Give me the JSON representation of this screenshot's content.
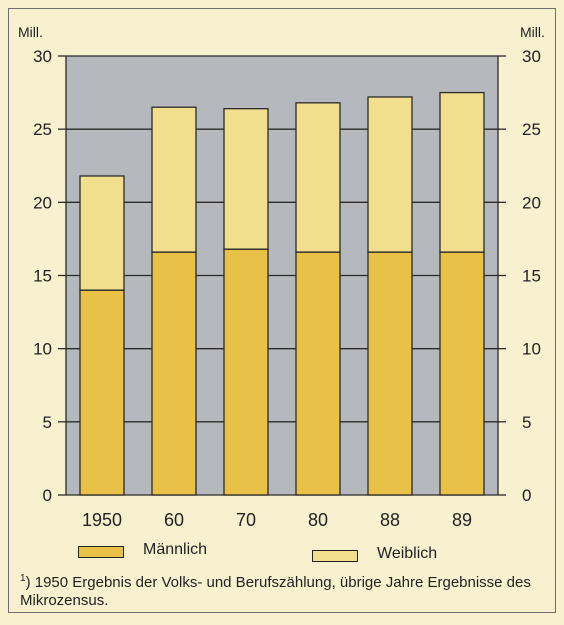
{
  "chart_data": {
    "type": "bar",
    "stacked": true,
    "categories": [
      "1950",
      "60",
      "70",
      "80",
      "88",
      "89"
    ],
    "series": [
      {
        "name": "Männlich",
        "values": [
          14.0,
          16.6,
          16.8,
          16.6,
          16.6,
          16.6
        ],
        "color": "#e8c146"
      },
      {
        "name": "Weiblich",
        "values": [
          7.8,
          9.9,
          9.6,
          10.2,
          10.6,
          10.9
        ],
        "color": "#f2df8e"
      }
    ],
    "ylim": [
      0,
      30
    ],
    "yticks": [
      "0",
      "5",
      "10",
      "15",
      "20",
      "25",
      "30"
    ],
    "y_unit_left": "Mill.",
    "y_unit_right": "Mill.",
    "plot_background": "#b5b8bc",
    "grid": true,
    "legend_position": "bottom"
  },
  "footnote": {
    "marker": "1",
    "text": ") 1950 Ergebnis der Volks- und Berufszählung, übrige Jahre Ergebnisse des Mikrozensus."
  }
}
